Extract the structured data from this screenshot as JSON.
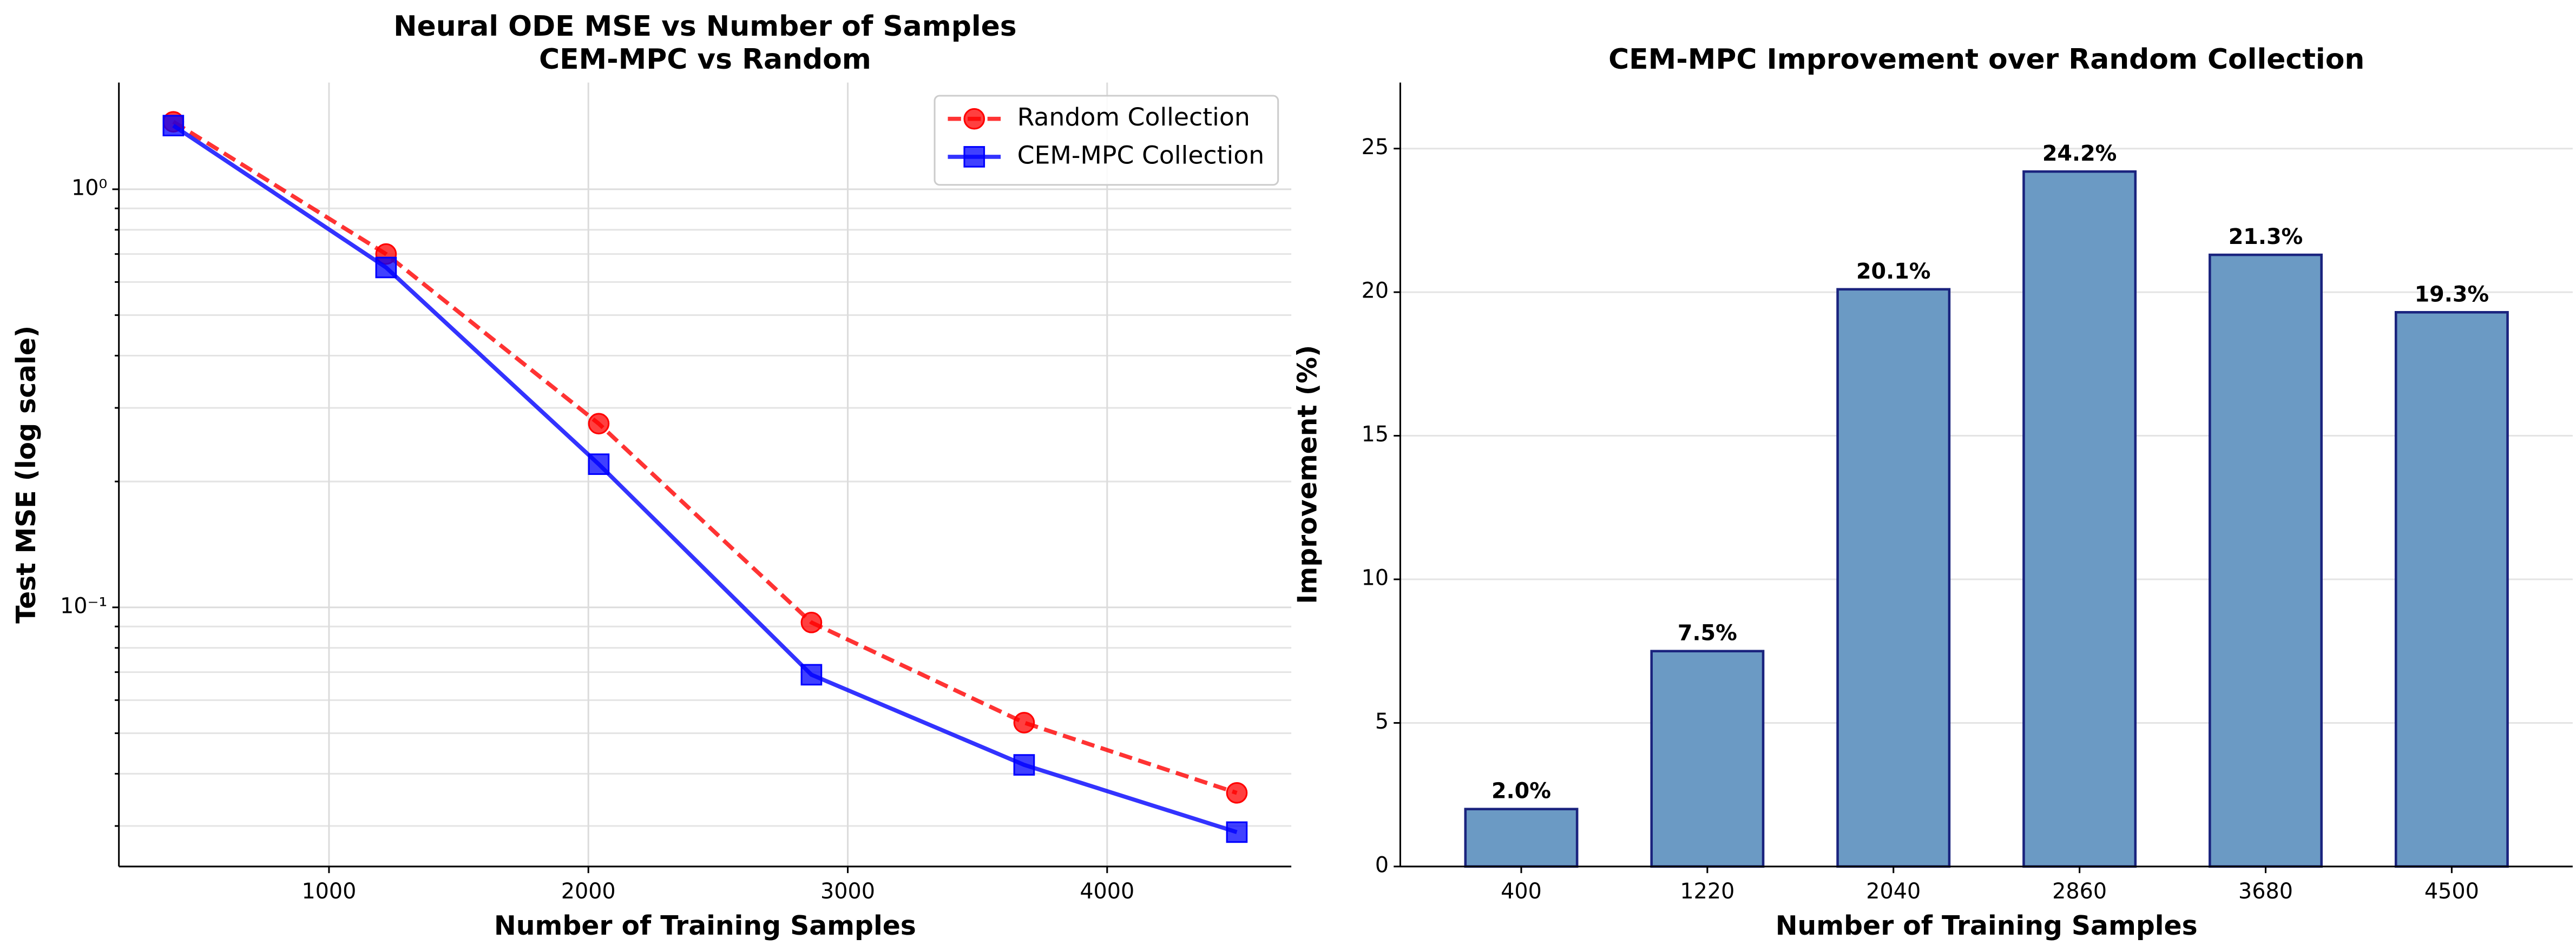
{
  "chart_data": [
    {
      "type": "line",
      "title": "Neural ODE MSE vs Number of Samples",
      "subtitle": "CEM-MPC vs Random",
      "x_label": "Number of Training Samples",
      "y_label": "Test MSE (log scale)",
      "x": [
        400,
        1220,
        2040,
        2860,
        3680,
        4500
      ],
      "series": [
        {
          "name": "Random Collection",
          "color": "#ff0000",
          "marker": "circle",
          "dash": true,
          "values": [
            1.45,
            0.7,
            0.275,
            0.092,
            0.053,
            0.036
          ]
        },
        {
          "name": "CEM-MPC Collection",
          "color": "#0000ff",
          "marker": "square",
          "dash": false,
          "values": [
            1.42,
            0.65,
            0.22,
            0.069,
            0.042,
            0.029
          ]
        }
      ],
      "xlim": [
        190,
        4710
      ],
      "xticks": [
        1000,
        2000,
        3000,
        4000
      ],
      "ylim": [
        0.024,
        1.8
      ],
      "log_y": true,
      "yticks": [
        {
          "value": 0.1,
          "label": "10⁻¹"
        },
        {
          "value": 1,
          "label": "10⁰"
        }
      ],
      "yminor_ticks": [
        0.03,
        0.04,
        0.05,
        0.06,
        0.07,
        0.08,
        0.09,
        0.2,
        0.3,
        0.4,
        0.5,
        0.6,
        0.7,
        0.8,
        0.9
      ],
      "grid": true,
      "legend": "upper right"
    },
    {
      "type": "bar",
      "title": "CEM-MPC Improvement over Random Collection",
      "x_label": "Number of Training Samples",
      "y_label": "Improvement (%)",
      "categories": [
        "400",
        "1220",
        "2040",
        "2860",
        "3680",
        "4500"
      ],
      "values": [
        2.0,
        7.5,
        20.1,
        24.2,
        21.3,
        19.3
      ],
      "value_labels": [
        "2.0%",
        "7.5%",
        "20.1%",
        "24.2%",
        "21.3%",
        "19.3%"
      ],
      "color": "#6b9ac4",
      "edge_color": "#1a237e",
      "ylim": [
        0,
        27.3
      ],
      "yticks": [
        0,
        5,
        10,
        15,
        20,
        25
      ],
      "grid": true
    }
  ]
}
